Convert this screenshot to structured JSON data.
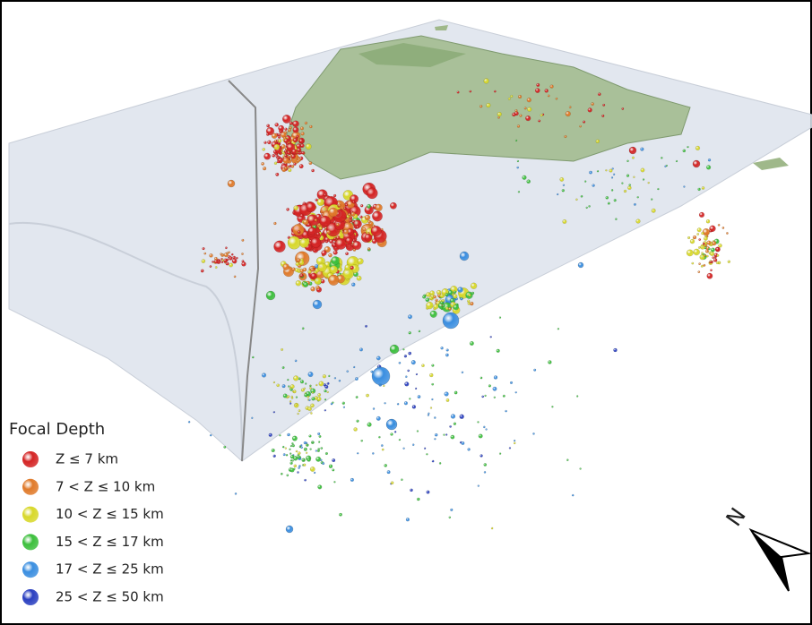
{
  "legend": {
    "title": "Focal Depth",
    "items": [
      {
        "label": "Z ≤ 7 km",
        "color": "#d42424"
      },
      {
        "label": "7 < Z ≤ 10 km",
        "color": "#e07a2a"
      },
      {
        "label": "10 < Z ≤ 15 km",
        "color": "#d8d82a"
      },
      {
        "label": "15 < Z ≤ 17 km",
        "color": "#3cbf3c"
      },
      {
        "label": "17 < Z ≤ 25 km",
        "color": "#3a8ee0"
      },
      {
        "label": "25 < Z ≤ 50 km",
        "color": "#2a3fc0"
      }
    ]
  },
  "compass": {
    "label": "N"
  }
}
